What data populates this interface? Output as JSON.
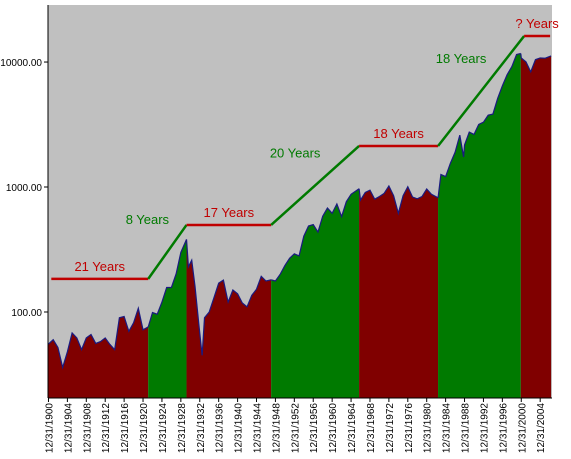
{
  "chart_data": {
    "type": "area",
    "log_scale": true,
    "background": "#c0c0c0",
    "line_color": "#1a1a80",
    "xlim": [
      1899.9,
      2006.5
    ],
    "ylim": [
      20.5,
      28600
    ],
    "yticks": [
      {
        "value": 100,
        "label": "100.00"
      },
      {
        "value": 1000,
        "label": "1000.00"
      },
      {
        "value": 10000,
        "label": "10000.00"
      }
    ],
    "xticks": [
      {
        "value": 1900,
        "label": "12/31/1900"
      },
      {
        "value": 1904,
        "label": "12/31/1904"
      },
      {
        "value": 1908,
        "label": "12/31/1908"
      },
      {
        "value": 1912,
        "label": "12/31/1912"
      },
      {
        "value": 1916,
        "label": "12/31/1916"
      },
      {
        "value": 1920,
        "label": "12/31/1920"
      },
      {
        "value": 1924,
        "label": "12/31/1924"
      },
      {
        "value": 1928,
        "label": "12/31/1928"
      },
      {
        "value": 1932,
        "label": "12/31/1932"
      },
      {
        "value": 1936,
        "label": "12/31/1936"
      },
      {
        "value": 1940,
        "label": "12/31/1940"
      },
      {
        "value": 1944,
        "label": "12/31/1944"
      },
      {
        "value": 1948,
        "label": "12/31/1948"
      },
      {
        "value": 1952,
        "label": "12/31/1952"
      },
      {
        "value": 1956,
        "label": "12/31/1956"
      },
      {
        "value": 1960,
        "label": "12/31/1960"
      },
      {
        "value": 1964,
        "label": "12/31/1964"
      },
      {
        "value": 1968,
        "label": "12/31/1968"
      },
      {
        "value": 1972,
        "label": "12/31/1972"
      },
      {
        "value": 1976,
        "label": "12/31/1976"
      },
      {
        "value": 1980,
        "label": "12/31/1980"
      },
      {
        "value": 1984,
        "label": "12/31/1984"
      },
      {
        "value": 1988,
        "label": "12/31/1988"
      },
      {
        "value": 1992,
        "label": "12/31/1992"
      },
      {
        "value": 1996,
        "label": "12/31/1996"
      },
      {
        "value": 2000,
        "label": "12/31/2000"
      },
      {
        "value": 2004,
        "label": "12/31/2004"
      }
    ],
    "series": [
      {
        "color": "#800000",
        "x": [
          1899.9,
          1901,
          1902,
          1903,
          1904,
          1905,
          1906,
          1907,
          1908,
          1909,
          1910,
          1911,
          1912,
          1913,
          1914,
          1915,
          1916,
          1917,
          1918,
          1919,
          1920,
          1921.1
        ],
        "values": [
          55,
          60,
          52,
          36,
          48,
          68,
          62,
          50,
          62,
          66,
          56,
          58,
          62,
          55,
          50,
          90,
          92,
          70,
          82,
          107,
          72,
          76
        ]
      },
      {
        "color": "#007a00",
        "x": [
          1921.1,
          1922,
          1923,
          1924,
          1925,
          1926,
          1927,
          1928,
          1929.2
        ],
        "values": [
          76,
          99,
          96,
          120,
          157,
          157,
          202,
          300,
          381
        ]
      },
      {
        "color": "#800000",
        "x": [
          1929.2,
          1929.6,
          1930.3,
          1931,
          1931.8,
          1932.5,
          1933,
          1934,
          1935,
          1936,
          1937,
          1938,
          1939,
          1940,
          1941,
          1942,
          1943,
          1944,
          1945,
          1946,
          1947.1
        ],
        "values": [
          381,
          230,
          260,
          160,
          80,
          45,
          90,
          100,
          130,
          170,
          180,
          120,
          150,
          140,
          118,
          110,
          136,
          152,
          193,
          177,
          181
        ]
      },
      {
        "color": "#007a00",
        "x": [
          1947.1,
          1948,
          1949,
          1950,
          1951,
          1952,
          1953,
          1954,
          1955,
          1956,
          1957,
          1958,
          1959,
          1960,
          1961,
          1962,
          1963,
          1964,
          1965.7
        ],
        "values": [
          181,
          177,
          200,
          235,
          269,
          292,
          281,
          404,
          488,
          500,
          436,
          584,
          679,
          616,
          731,
          580,
          763,
          874,
          969
        ]
      },
      {
        "color": "#800000",
        "x": [
          1965.7,
          1966,
          1967,
          1968,
          1969,
          1970,
          1971,
          1972,
          1973,
          1974,
          1975,
          1976,
          1977,
          1978,
          1979,
          1980,
          1981,
          1982.4
        ],
        "values": [
          969,
          786,
          905,
          944,
          800,
          839,
          890,
          1020,
          851,
          616,
          852,
          1005,
          831,
          805,
          839,
          964,
          875,
          820
        ]
      },
      {
        "color": "#007a00",
        "x": [
          1982.4,
          1983,
          1984,
          1985,
          1986,
          1987,
          1987.8,
          1988,
          1989,
          1990,
          1991,
          1992,
          1993,
          1994,
          1995,
          1996,
          1997,
          1998,
          1999,
          1999.9
        ],
        "values": [
          820,
          1259,
          1212,
          1547,
          1896,
          2600,
          1739,
          2169,
          2753,
          2634,
          3169,
          3301,
          3754,
          3834,
          5117,
          6448,
          7908,
          9181,
          11497,
          11700
        ]
      },
      {
        "color": "#800000",
        "x": [
          1999.9,
          2000,
          2001,
          2002,
          2003,
          2004,
          2005,
          2006.3
        ],
        "values": [
          11700,
          10787,
          10021,
          8342,
          10454,
          10783,
          10718,
          11200
        ]
      }
    ],
    "trend_lines": [
      {
        "name": "21 Years",
        "color": "#c00000",
        "x": [
          1900.6,
          1921.1
        ],
        "values": [
          184,
          184
        ]
      },
      {
        "name": "8 Years",
        "color": "#007a00",
        "x": [
          1921.1,
          1929.2
        ],
        "values": [
          184,
          497
        ]
      },
      {
        "name": "17 Years",
        "color": "#c00000",
        "x": [
          1929.2,
          1947.1
        ],
        "values": [
          497,
          497
        ]
      },
      {
        "name": "20 Years",
        "color": "#007a00",
        "x": [
          1947.1,
          1965.7
        ],
        "values": [
          497,
          2130
        ]
      },
      {
        "name": "18 Years",
        "color": "#c00000",
        "x": [
          1965.7,
          1982.4
        ],
        "values": [
          2130,
          2130
        ]
      },
      {
        "name": "18 Years",
        "color": "#007a00",
        "x": [
          1982.4,
          2000.6
        ],
        "values": [
          2130,
          16140
        ]
      },
      {
        "name": "? Years",
        "color": "#c00000",
        "x": [
          2000.6,
          2006.1
        ],
        "values": [
          16140,
          16140
        ]
      }
    ]
  }
}
